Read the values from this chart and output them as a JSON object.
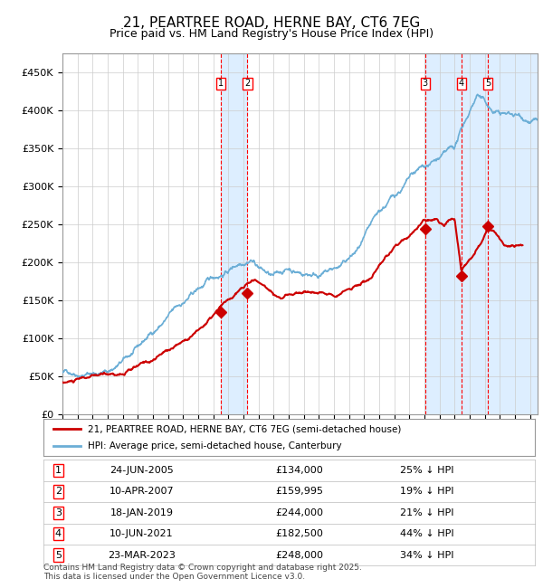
{
  "title": "21, PEARTREE ROAD, HERNE BAY, CT6 7EG",
  "subtitle": "Price paid vs. HM Land Registry's House Price Index (HPI)",
  "footer": "Contains HM Land Registry data © Crown copyright and database right 2025.\nThis data is licensed under the Open Government Licence v3.0.",
  "legend_line1": "21, PEARTREE ROAD, HERNE BAY, CT6 7EG (semi-detached house)",
  "legend_line2": "HPI: Average price, semi-detached house, Canterbury",
  "hpi_color": "#6baed6",
  "price_color": "#cc0000",
  "background_color": "#ffffff",
  "grid_color": "#cccccc",
  "shade_color": "#ddeeff",
  "ylim": [
    0,
    475000
  ],
  "yticks": [
    0,
    50000,
    100000,
    150000,
    200000,
    250000,
    300000,
    350000,
    400000,
    450000
  ],
  "ytick_labels": [
    "£0",
    "£50K",
    "£100K",
    "£150K",
    "£200K",
    "£250K",
    "£300K",
    "£350K",
    "£400K",
    "£450K"
  ],
  "xlim_start": 1995.0,
  "xlim_end": 2026.5,
  "purchases": [
    {
      "num": 1,
      "date": "24-JUN-2005",
      "year": 2005.48,
      "price": 134000,
      "pct": "25%",
      "dir": "↓"
    },
    {
      "num": 2,
      "date": "10-APR-2007",
      "year": 2007.27,
      "price": 159995,
      "pct": "19%",
      "dir": "↓"
    },
    {
      "num": 3,
      "date": "18-JAN-2019",
      "year": 2019.05,
      "price": 244000,
      "pct": "21%",
      "dir": "↓"
    },
    {
      "num": 4,
      "date": "10-JUN-2021",
      "year": 2021.44,
      "price": 182500,
      "pct": "44%",
      "dir": "↓"
    },
    {
      "num": 5,
      "date": "23-MAR-2023",
      "year": 2023.22,
      "price": 248000,
      "pct": "34%",
      "dir": "↓"
    }
  ],
  "table_rows": [
    {
      "num": 1,
      "date": "24-JUN-2005",
      "price": "£134,000",
      "pct": "25% ↓ HPI"
    },
    {
      "num": 2,
      "date": "10-APR-2007",
      "price": "£159,995",
      "pct": "19% ↓ HPI"
    },
    {
      "num": 3,
      "date": "18-JAN-2019",
      "price": "£244,000",
      "pct": "21% ↓ HPI"
    },
    {
      "num": 4,
      "date": "10-JUN-2021",
      "price": "£182,500",
      "pct": "44% ↓ HPI"
    },
    {
      "num": 5,
      "date": "23-MAR-2023",
      "price": "£248,000",
      "pct": "34% ↓ HPI"
    }
  ]
}
